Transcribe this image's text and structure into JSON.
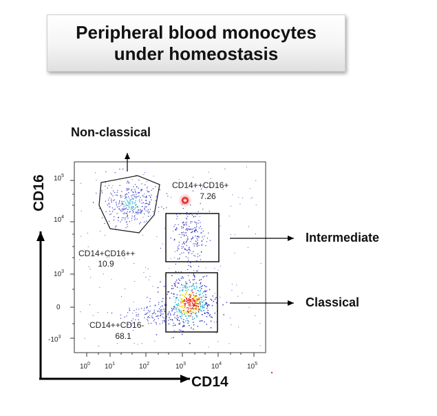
{
  "title": {
    "line1": "Peripheral blood monocytes",
    "line2": "under homeostasis"
  },
  "axes": {
    "x_label": "CD14",
    "y_label": "CD16",
    "x_ticks": [
      "10",
      "10",
      "10",
      "10",
      "10",
      "10"
    ],
    "x_tick_exponents": [
      "0",
      "1",
      "2",
      "3",
      "4",
      "5"
    ],
    "y_ticks": [
      "10",
      "10",
      "10",
      "0",
      "-10"
    ],
    "y_tick_exponents": [
      "5",
      "4",
      "3",
      "",
      "3"
    ]
  },
  "gates": {
    "non_classical": {
      "name": "CD14+CD16++",
      "value": "10.9"
    },
    "intermediate": {
      "name": "CD14++CD16+",
      "value": "7.26"
    },
    "classical": {
      "name": "CD14++CD16-",
      "value": "68.1"
    }
  },
  "callouts": {
    "non_classical": "Non-classical",
    "intermediate": "Intermediate",
    "classical": "Classical"
  },
  "colors": {
    "plot_border": "#333333",
    "dot_sparse": "#3a3ac8",
    "dot_mid": "#22b0d0",
    "dot_dense": "#f0e020",
    "dot_core": "#e83020"
  }
}
